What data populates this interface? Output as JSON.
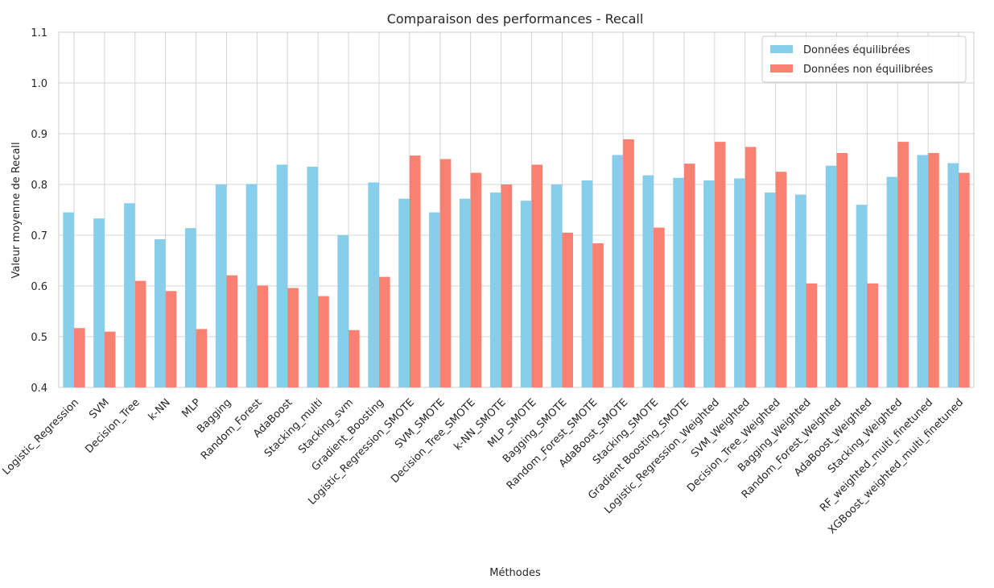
{
  "chart_data": {
    "type": "bar",
    "title": "Comparaison des performances - Recall",
    "xlabel": "Méthodes",
    "ylabel": "Valeur moyenne de Recall",
    "ylim": [
      0.4,
      1.1
    ],
    "yticks": [
      "0.4",
      "0.5",
      "0.6",
      "0.7",
      "0.8",
      "0.9",
      "1.0",
      "1.1"
    ],
    "grid": true,
    "legend_position": "top-right",
    "categories": [
      "Logistic_Regression",
      "SVM",
      "Decision_Tree",
      "k-NN",
      "MLP",
      "Bagging",
      "Random_Forest",
      "AdaBoost",
      "Stacking_multi",
      "Stacking_svm",
      "Gradient_Boosting",
      "Logistic_Regression_SMOTE",
      "SVM_SMOTE",
      "Decision_Tree_SMOTE",
      "k-NN_SMOTE",
      "MLP_SMOTE",
      "Bagging_SMOTE",
      "Random_Forest_SMOTE",
      "AdaBoost_SMOTE",
      "Stacking_SMOTE",
      "Gradient Boosting_SMOTE",
      "Logistic_Regression_Weighted",
      "SVM_Weighted",
      "Decision_Tree_Weighted",
      "Bagging_Weighted",
      "Random_Forest_Weighted",
      "AdaBoost_Weighted",
      "Stacking_Weighted",
      "RF_weighted_multi_finetuned",
      "XGBoost_weighted_multi_finetuned"
    ],
    "series": [
      {
        "name": "Données équilibrées",
        "color": "#87ceeb",
        "values": [
          0.745,
          0.733,
          0.763,
          0.692,
          0.714,
          0.8,
          0.801,
          0.839,
          0.835,
          0.7,
          0.804,
          0.772,
          0.745,
          0.772,
          0.784,
          0.768,
          0.8,
          0.808,
          0.858,
          0.818,
          0.813,
          0.808,
          0.812,
          0.784,
          0.78,
          0.837,
          0.76,
          0.815,
          0.858,
          0.842
        ]
      },
      {
        "name": "Données non équilibrées",
        "color": "#fa8072",
        "values": [
          0.517,
          0.51,
          0.61,
          0.59,
          0.515,
          0.621,
          0.601,
          0.596,
          0.58,
          0.513,
          0.618,
          0.857,
          0.85,
          0.823,
          0.8,
          0.839,
          0.705,
          0.684,
          0.889,
          0.715,
          0.841,
          0.884,
          0.874,
          0.825,
          0.605,
          0.862,
          0.605,
          0.884,
          0.862,
          0.823
        ]
      }
    ]
  }
}
